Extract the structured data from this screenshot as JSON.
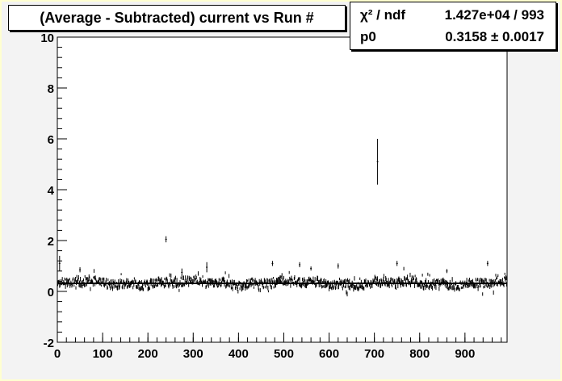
{
  "chart_data": {
    "type": "scatter",
    "title": "(Average - Subtracted) current vs Run #",
    "xlabel": "",
    "ylabel": "",
    "xlim": [
      0,
      993
    ],
    "ylim": [
      -2,
      10
    ],
    "x_ticks": [
      "0",
      "100",
      "200",
      "300",
      "400",
      "500",
      "600",
      "700",
      "800",
      "900"
    ],
    "y_ticks": [
      "-2",
      "0",
      "2",
      "4",
      "6",
      "8",
      "10"
    ],
    "fit": {
      "function": "pol0",
      "chi2_label": "χ² / ndf",
      "chi2_ndf": "1.427e+04 / 993",
      "param_label": "p0",
      "p0": "0.3158",
      "p0_error": "0.0017",
      "p0_value": 0.3158
    },
    "outliers": [
      {
        "x": 5,
        "y": 1.1,
        "err": 0.3
      },
      {
        "x": 50,
        "y": 0.85,
        "err": 0.1
      },
      {
        "x": 240,
        "y": 2.05,
        "err": 0.12
      },
      {
        "x": 275,
        "y": 0.75,
        "err": 0.15
      },
      {
        "x": 330,
        "y": 0.95,
        "err": 0.2
      },
      {
        "x": 475,
        "y": 1.1,
        "err": 0.1
      },
      {
        "x": 535,
        "y": 1.05,
        "err": 0.1
      },
      {
        "x": 560,
        "y": 0.9,
        "err": 0.08
      },
      {
        "x": 620,
        "y": 1.0,
        "err": 0.1
      },
      {
        "x": 707,
        "y": 5.1,
        "err": 0.9
      },
      {
        "x": 750,
        "y": 1.1,
        "err": 0.1
      },
      {
        "x": 860,
        "y": 0.8,
        "err": 0.08
      },
      {
        "x": 950,
        "y": 1.1,
        "err": 0.1
      }
    ],
    "grid": false,
    "legend": "top-right"
  },
  "colors": {
    "canvas": "#f3f3f3",
    "frame": "#ffffd0",
    "pad": "#ffffff",
    "markers": "#000000"
  }
}
